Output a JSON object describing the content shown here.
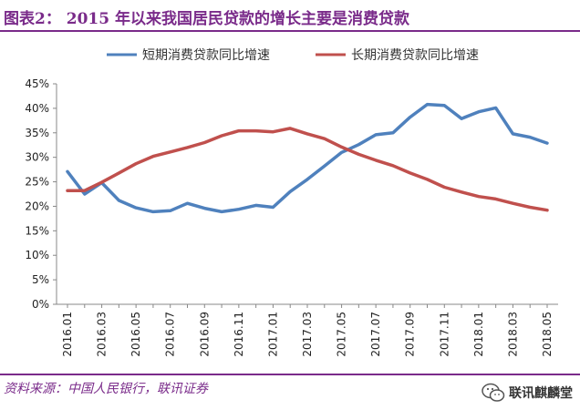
{
  "title": "图表2： 2015 年以来我国居民贷款的增长主要是消费贷款",
  "source": "资料来源：中国人民银行，联讯证券",
  "watermark": "联讯麒麟堂",
  "colors": {
    "short_series": "#4f81bd",
    "long_series": "#c0504d",
    "accent": "#7a2b8a"
  },
  "chart_data": {
    "type": "line",
    "title": "",
    "xlabel": "",
    "ylabel": "",
    "ylim": [
      0,
      45
    ],
    "y_ticks": [
      "0%",
      "5%",
      "10%",
      "15%",
      "20%",
      "25%",
      "30%",
      "35%",
      "40%",
      "45%"
    ],
    "x_tick_labels": [
      "2016.01",
      "2016.03",
      "2016.05",
      "2016.07",
      "2016.09",
      "2016.11",
      "2017.01",
      "2017.03",
      "2017.05",
      "2017.07",
      "2017.09",
      "2017.11",
      "2018.01",
      "2018.03",
      "2018.05"
    ],
    "categories": [
      "2016.01",
      "2016.02",
      "2016.03",
      "2016.04",
      "2016.05",
      "2016.06",
      "2016.07",
      "2016.08",
      "2016.09",
      "2016.10",
      "2016.11",
      "2016.12",
      "2017.01",
      "2017.02",
      "2017.03",
      "2017.04",
      "2017.05",
      "2017.06",
      "2017.07",
      "2017.08",
      "2017.09",
      "2017.10",
      "2017.11",
      "2017.12",
      "2018.01",
      "2018.02",
      "2018.03",
      "2018.04",
      "2018.05"
    ],
    "series": [
      {
        "name": "短期消费贷款同比增速",
        "color": "#4f81bd",
        "values": [
          27.1,
          22.5,
          24.8,
          21.2,
          19.7,
          18.9,
          19.1,
          20.6,
          19.6,
          18.9,
          19.4,
          20.2,
          19.8,
          23.0,
          25.5,
          28.2,
          31.0,
          32.6,
          34.6,
          35.0,
          38.2,
          40.8,
          40.6,
          37.9,
          39.3,
          40.1,
          34.8,
          34.1,
          32.9
        ]
      },
      {
        "name": "长期消费贷款同比增速",
        "color": "#c0504d",
        "values": [
          23.2,
          23.2,
          24.9,
          26.8,
          28.7,
          30.2,
          31.1,
          32.0,
          33.0,
          34.4,
          35.4,
          35.4,
          35.2,
          35.9,
          34.8,
          33.8,
          32.1,
          30.6,
          29.4,
          28.3,
          26.8,
          25.5,
          23.9,
          22.9,
          22.0,
          21.5,
          20.6,
          19.8,
          19.2
        ]
      }
    ],
    "legend_position": "top"
  }
}
